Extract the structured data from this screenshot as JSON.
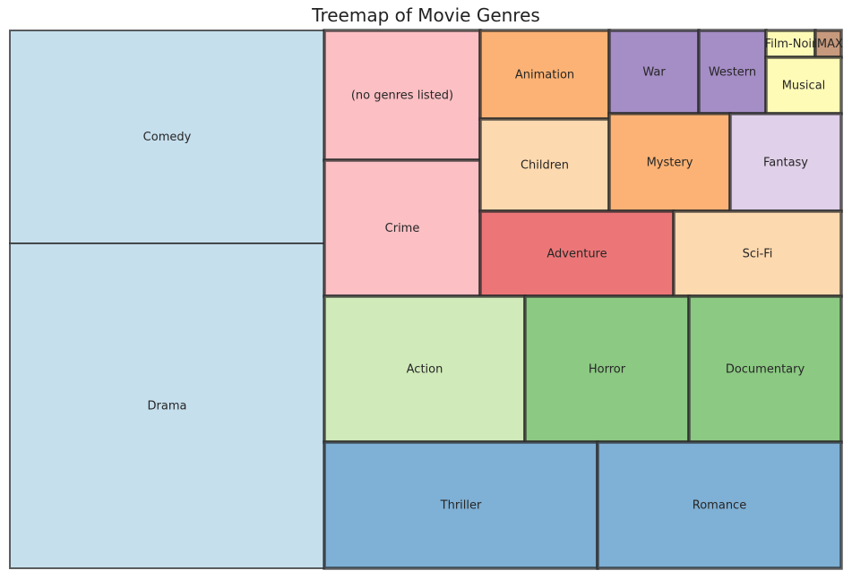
{
  "chart_data": {
    "type": "treemap",
    "title": "Treemap of Movie Genres",
    "grid": false,
    "legend": "none",
    "tiles": [
      {
        "label": "Comedy",
        "color": "#c6dfed"
      },
      {
        "label": "Drama",
        "color": "#c6dfed"
      },
      {
        "label": "(no genres listed)",
        "color": "#fbbfc4"
      },
      {
        "label": "Crime",
        "color": "#fbbfc4"
      },
      {
        "label": "Animation",
        "color": "#fcb274"
      },
      {
        "label": "Children",
        "color": "#fdd9af"
      },
      {
        "label": "War",
        "color": "#a58dc6"
      },
      {
        "label": "Western",
        "color": "#a58dc6"
      },
      {
        "label": "Film-Noir",
        "color": "#fefbb7"
      },
      {
        "label": "IMAX",
        "color": "#c79a7d"
      },
      {
        "label": "Musical",
        "color": "#fefbb7"
      },
      {
        "label": "Mystery",
        "color": "#fcb274"
      },
      {
        "label": "Fantasy",
        "color": "#e0d0e9"
      },
      {
        "label": "Adventure",
        "color": "#ec7677"
      },
      {
        "label": "Sci-Fi",
        "color": "#fdd9af"
      },
      {
        "label": "Action",
        "color": "#d0eab9"
      },
      {
        "label": "Horror",
        "color": "#8cc983"
      },
      {
        "label": "Documentary",
        "color": "#8cc983"
      },
      {
        "label": "Thriller",
        "color": "#7fb0d5"
      },
      {
        "label": "Romance",
        "color": "#7fb0d5"
      }
    ]
  }
}
